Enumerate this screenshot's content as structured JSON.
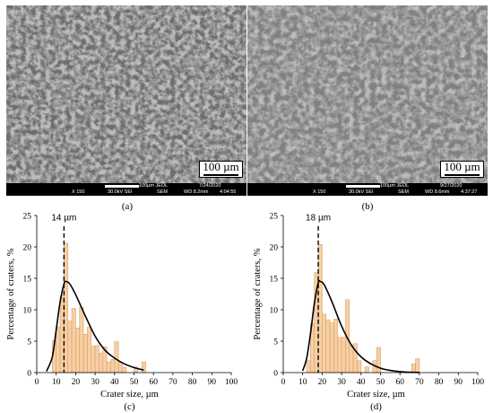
{
  "panels": {
    "a": {
      "caption": "(a)",
      "scale_label": "100 µm",
      "info": {
        "scale_text": "100µm JEOL",
        "date": "7/24/2020",
        "mag": "X 150",
        "kv": "30.0kV SEI",
        "sem": "SEM",
        "wd": "WD 8.2mm",
        "time": "4:04:55"
      }
    },
    "b": {
      "caption": "(b)",
      "scale_label": "100 µm",
      "info": {
        "scale_text": "100µm JEOL",
        "date": "9/27/2020",
        "mag": "X 150",
        "kv": "30.0kV SEI",
        "sem": "SEM",
        "wd": "WD 8.6mm",
        "time": "4:37:27"
      }
    }
  },
  "chart_data": [
    {
      "type": "bar",
      "caption": "(c)",
      "xlabel": "Crater size, µm",
      "ylabel": "Percentage of craters, %",
      "xlim": [
        0,
        100
      ],
      "ylim": [
        0,
        25
      ],
      "xticks": [
        0,
        10,
        20,
        30,
        40,
        50,
        60,
        70,
        80,
        90,
        100
      ],
      "yticks": [
        0,
        5,
        10,
        15,
        20,
        25
      ],
      "bin_width": 2,
      "bin_starts": [
        8,
        10,
        12,
        14,
        16,
        18,
        20,
        22,
        24,
        26,
        28,
        30,
        32,
        34,
        36,
        38,
        40,
        42,
        44,
        46,
        48,
        50,
        52,
        54
      ],
      "values": [
        5.1,
        7.3,
        12.2,
        20.6,
        8.2,
        10.2,
        7.1,
        10.4,
        6.1,
        7.2,
        4.2,
        4.3,
        3.1,
        4.1,
        1.7,
        2.1,
        4.9,
        1.6,
        0.8,
        0,
        0,
        0.9,
        0,
        1.7
      ],
      "fit_curve": [
        [
          5,
          0.2
        ],
        [
          8,
          2.5
        ],
        [
          10,
          6.8
        ],
        [
          12,
          11.2
        ],
        [
          14,
          14.1
        ],
        [
          15,
          14.5
        ],
        [
          17,
          14.1
        ],
        [
          20,
          12.4
        ],
        [
          25,
          9.0
        ],
        [
          30,
          5.8
        ],
        [
          35,
          3.6
        ],
        [
          40,
          2.3
        ],
        [
          45,
          1.4
        ],
        [
          50,
          0.8
        ],
        [
          55,
          0.4
        ]
      ],
      "mode_line_x": 14,
      "mode_label": "14 µm"
    },
    {
      "type": "bar",
      "caption": "(d)",
      "xlabel": "Crater size, µm",
      "ylabel": "Percentage of craters, %",
      "xlim": [
        0,
        100
      ],
      "ylim": [
        0,
        25
      ],
      "xticks": [
        0,
        10,
        20,
        30,
        40,
        50,
        60,
        70,
        80,
        90,
        100
      ],
      "yticks": [
        0,
        5,
        10,
        15,
        20,
        25
      ],
      "bin_width": 2,
      "bin_starts": [
        12,
        14,
        16,
        18,
        20,
        22,
        24,
        26,
        28,
        30,
        32,
        34,
        36,
        38,
        40,
        42,
        44,
        46,
        48,
        50,
        52,
        54,
        56,
        58,
        60,
        62,
        64,
        66,
        68
      ],
      "values": [
        1.9,
        7.8,
        15.9,
        20.4,
        9.3,
        8.4,
        7.9,
        8.5,
        5.6,
        5.6,
        11.6,
        4.3,
        4.6,
        1.9,
        0,
        0.9,
        0,
        1.9,
        4.0,
        0,
        0,
        0,
        0,
        0,
        0,
        0,
        0,
        1.4,
        2.2
      ],
      "fit_curve": [
        [
          10,
          0.3
        ],
        [
          12,
          2.2
        ],
        [
          14,
          6.2
        ],
        [
          16,
          11.0
        ],
        [
          18,
          14.3
        ],
        [
          19,
          14.5
        ],
        [
          21,
          14.0
        ],
        [
          25,
          11.3
        ],
        [
          30,
          7.4
        ],
        [
          35,
          4.4
        ],
        [
          40,
          2.5
        ],
        [
          45,
          1.4
        ],
        [
          50,
          0.7
        ],
        [
          55,
          0.35
        ],
        [
          60,
          0.15
        ],
        [
          65,
          0.06
        ],
        [
          70,
          0.02
        ]
      ],
      "mode_line_x": 18,
      "mode_label": "18 µm"
    }
  ],
  "colors": {
    "bar_fill": "#f7cfa4",
    "bar_stroke": "#d8a068",
    "curve": "#000000",
    "sem_bg": "#7a7a7a"
  }
}
